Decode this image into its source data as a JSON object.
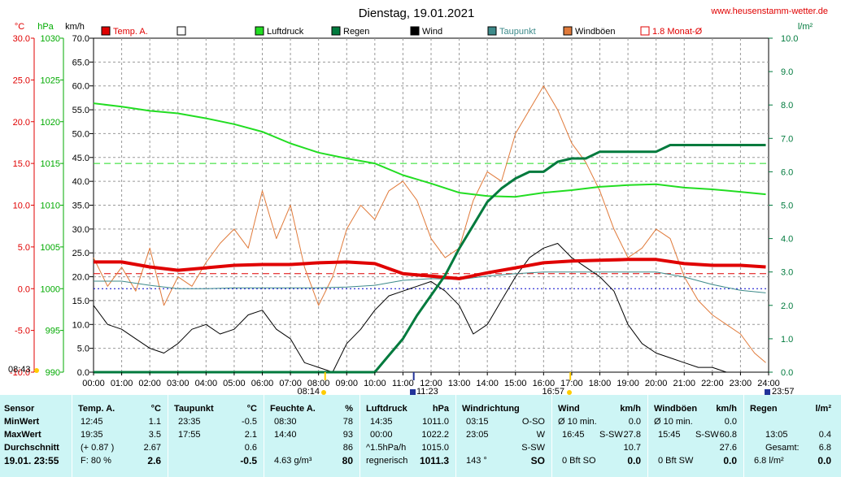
{
  "header": {
    "title": "Dienstag, 19.01.2021",
    "website": "www.heusenstamm-wetter.de"
  },
  "axes": {
    "temp_unit": "°C",
    "pressure_unit": "hPa",
    "wind_unit": "km/h",
    "rain_unit": "l/m²",
    "temp_ticks": [
      "30.0",
      "25.0",
      "20.0",
      "15.0",
      "10.0",
      "5.0",
      "0.0",
      "-5.0",
      "-10.0"
    ],
    "pressure_ticks": [
      "1030",
      "1025",
      "1020",
      "1015",
      "1010",
      "1005",
      "1000",
      "995",
      "990"
    ],
    "wind_ticks": [
      "70.0",
      "65.0",
      "60.0",
      "55.0",
      "50.0",
      "45.0",
      "40.0",
      "35.0",
      "30.0",
      "25.0",
      "20.0",
      "15.0",
      "10.0",
      "5.0",
      "0.0"
    ],
    "rain_ticks": [
      "10.0",
      "9.0",
      "8.0",
      "7.0",
      "6.0",
      "5.0",
      "4.0",
      "3.0",
      "2.0",
      "1.0",
      "0.0"
    ],
    "time_ticks": [
      "00:00",
      "01:00",
      "02:00",
      "03:00",
      "04:00",
      "05:00",
      "06:00",
      "07:00",
      "08:00",
      "09:00",
      "10:00",
      "11:00",
      "12:00",
      "13:00",
      "14:00",
      "15:00",
      "16:00",
      "17:00",
      "18:00",
      "19:00",
      "20:00",
      "21:00",
      "22:00",
      "23:00",
      "24:00"
    ]
  },
  "legend": [
    {
      "label": "Temp. A.",
      "color": "#e00000"
    },
    {
      "label": "",
      "color": "#000000"
    },
    {
      "label": "Luftdruck",
      "color": "#22dd22"
    },
    {
      "label": "Regen",
      "color": "#007a3d"
    },
    {
      "label": "Wind",
      "color": "#000000"
    },
    {
      "label": "Taupunkt",
      "color": "#3d8a8a"
    },
    {
      "label": "Windböen",
      "color": "#e07a3a"
    },
    {
      "label": "1.8 Monat-Ø",
      "color": "#e00000"
    }
  ],
  "time_markers": {
    "sunrise": "08:14",
    "sunset": "16:57",
    "moonrise": "11:23",
    "moonset": "23:57",
    "start": "08:43"
  },
  "chart_data": {
    "type": "line",
    "x_unit": "hours",
    "xlim": [
      0,
      24
    ],
    "title": "Dienstag, 19.01.2021",
    "series": [
      {
        "name": "Temp. A.",
        "axis": "temp",
        "ylim": [
          -10,
          30
        ],
        "x": [
          0,
          1,
          2,
          3,
          4,
          5,
          6,
          7,
          8,
          9,
          10,
          11,
          12,
          13,
          14,
          15,
          16,
          17,
          18,
          19,
          20,
          21,
          22,
          23,
          23.9
        ],
        "values": [
          3.2,
          3.2,
          2.6,
          2.2,
          2.5,
          2.8,
          2.9,
          2.9,
          3.1,
          3.2,
          3.0,
          1.8,
          1.5,
          1.2,
          1.9,
          2.5,
          3.1,
          3.3,
          3.4,
          3.5,
          3.5,
          3.0,
          2.8,
          2.8,
          2.6
        ]
      },
      {
        "name": "Taupunkt",
        "axis": "temp",
        "ylim": [
          -10,
          30
        ],
        "x": [
          0,
          1,
          2,
          3,
          4,
          5,
          6,
          7,
          8,
          9,
          10,
          11,
          12,
          13,
          14,
          15,
          16,
          17,
          18,
          19,
          20,
          21,
          22,
          23,
          23.9
        ],
        "values": [
          0.9,
          0.9,
          0.4,
          0.0,
          0.0,
          0.1,
          0.1,
          0.1,
          0.1,
          0.2,
          0.4,
          1.0,
          1.2,
          1.1,
          1.5,
          1.8,
          2.0,
          2.0,
          2.0,
          2.0,
          2.0,
          1.4,
          0.5,
          -0.2,
          -0.5
        ]
      },
      {
        "name": "Luftdruck",
        "axis": "pressure",
        "ylim": [
          990,
          1030
        ],
        "x": [
          0,
          1,
          2,
          3,
          4,
          5,
          6,
          7,
          8,
          9,
          10,
          11,
          12,
          13,
          14,
          15,
          16,
          17,
          18,
          19,
          20,
          21,
          22,
          23,
          23.9
        ],
        "values": [
          1022.2,
          1021.8,
          1021.3,
          1021.0,
          1020.4,
          1019.7,
          1018.8,
          1017.4,
          1016.3,
          1015.6,
          1015.0,
          1013.6,
          1012.6,
          1011.5,
          1011.1,
          1011.0,
          1011.5,
          1011.8,
          1012.2,
          1012.4,
          1012.5,
          1012.1,
          1011.9,
          1011.6,
          1011.3
        ]
      },
      {
        "name": "Wind",
        "axis": "wind",
        "ylim": [
          0,
          70
        ],
        "x": [
          0,
          0.5,
          1,
          1.5,
          2,
          2.5,
          3,
          3.5,
          4,
          4.5,
          5,
          5.5,
          6,
          6.5,
          7,
          7.5,
          8,
          8.5,
          9,
          9.5,
          10,
          10.5,
          11,
          11.5,
          12,
          12.5,
          13,
          13.5,
          14,
          14.5,
          15,
          15.5,
          16,
          16.5,
          17,
          17.5,
          18,
          18.5,
          19,
          19.5,
          20,
          20.5,
          21,
          21.5,
          22,
          22.5,
          23,
          23.5,
          23.9
        ],
        "values": [
          14,
          10,
          9,
          7,
          5,
          4,
          6,
          9,
          10,
          8,
          9,
          12,
          13,
          9,
          7,
          2,
          1,
          0,
          6,
          9,
          13,
          16,
          17,
          18,
          19,
          17,
          14,
          8,
          10,
          15,
          20,
          24,
          26,
          27,
          24,
          22,
          20,
          17,
          10,
          6,
          4,
          3,
          2,
          1,
          1,
          0,
          0,
          0,
          0
        ]
      },
      {
        "name": "Windböen",
        "axis": "wind",
        "ylim": [
          0,
          70
        ],
        "x": [
          0,
          0.5,
          1,
          1.5,
          2,
          2.5,
          3,
          3.5,
          4,
          4.5,
          5,
          5.5,
          6,
          6.5,
          7,
          7.5,
          8,
          8.5,
          9,
          9.5,
          10,
          10.5,
          11,
          11.5,
          12,
          12.5,
          13,
          13.5,
          14,
          14.5,
          15,
          15.5,
          16,
          16.5,
          17,
          17.5,
          18,
          18.5,
          19,
          19.5,
          20,
          20.5,
          21,
          21.5,
          22,
          22.5,
          23,
          23.5,
          23.9
        ],
        "values": [
          24,
          18,
          22,
          17,
          26,
          14,
          20,
          18,
          23,
          27,
          30,
          26,
          38,
          28,
          35,
          22,
          14,
          20,
          30,
          35,
          32,
          38,
          40,
          36,
          28,
          24,
          26,
          36,
          42,
          40,
          50,
          55,
          60,
          55,
          48,
          44,
          38,
          30,
          24,
          26,
          30,
          28,
          20,
          15,
          12,
          10,
          8,
          4,
          2
        ]
      },
      {
        "name": "Regen",
        "axis": "rain",
        "ylim": [
          0,
          10
        ],
        "x": [
          0,
          10.0,
          10.5,
          11.0,
          11.5,
          12.0,
          12.5,
          13.0,
          13.5,
          14.0,
          14.5,
          15.0,
          15.5,
          16.0,
          16.5,
          17.0,
          17.5,
          18.0,
          18.5,
          19.0,
          19.5,
          20.0,
          20.5,
          21.0,
          22.0,
          23.0,
          23.9
        ],
        "values": [
          0,
          0,
          0.5,
          1.0,
          1.7,
          2.3,
          2.9,
          3.7,
          4.4,
          5.1,
          5.5,
          5.8,
          6.0,
          6.0,
          6.3,
          6.4,
          6.4,
          6.6,
          6.6,
          6.6,
          6.6,
          6.6,
          6.8,
          6.8,
          6.8,
          6.8,
          6.8
        ]
      }
    ],
    "reference_lines": [
      {
        "name": "1.8 Monat-Ø",
        "axis": "temp",
        "value": 1.8,
        "color": "#e00000"
      },
      {
        "axis": "pressure",
        "value": 1015.0,
        "color": "#22dd22"
      },
      {
        "axis": "temp",
        "value": 0.0,
        "color": "#0000cc"
      }
    ]
  },
  "table": {
    "sensor": {
      "header": "Sensor",
      "min": "MinWert",
      "max": "MaxWert",
      "avg": "Durchschnitt",
      "current": "19.01. 23:55"
    },
    "temp": {
      "header": "Temp. A.",
      "unit": "°C",
      "min_time": "12:45",
      "min_val": "1.1",
      "max_time": "19:35",
      "max_val": "3.5",
      "avg_label": "(+ 0.87 )",
      "avg_val": "2.67",
      "cur_label": "F: 80 %",
      "cur_val": "2.6"
    },
    "dew": {
      "header": "Taupunkt",
      "unit": "°C",
      "min_time": "23:35",
      "min_val": "-0.5",
      "max_time": "17:55",
      "max_val": "2.1",
      "avg_val": "0.6",
      "cur_val": "-0.5"
    },
    "hum": {
      "header": "Feuchte A.",
      "unit": "%",
      "min_time": "08:30",
      "min_val": "78",
      "max_time": "14:40",
      "max_val": "93",
      "avg_val": "86",
      "cur_label": "4.63 g/m³",
      "cur_val": "80"
    },
    "press": {
      "header": "Luftdruck",
      "unit": "hPa",
      "min_time": "14:35",
      "min_val": "1011.0",
      "max_time": "00:00",
      "max_val": "1022.2",
      "avg_label": "^1.5hPa/h",
      "avg_val": "1015.0",
      "cur_label": "regnerisch",
      "cur_val": "1011.3"
    },
    "dir": {
      "header": "Windrichtung",
      "min_time": "03:15",
      "min_val": "O-SO",
      "max_time": "23:05",
      "max_val": "W",
      "avg_val": "S-SW",
      "cur_label": "143 °",
      "cur_val": "SO"
    },
    "wind": {
      "header": "Wind",
      "unit": "km/h",
      "min_label": "Ø 10 min.",
      "min_val": "0.0",
      "max_time": "16:45",
      "max_dir": "S-SW",
      "max_val": "27.8",
      "avg_val": "10.7",
      "cur_label": "0 Bft SO",
      "cur_val": "0.0"
    },
    "gust": {
      "header": "Windböen",
      "unit": "km/h",
      "min_label": "Ø 10 min.",
      "min_val": "0.0",
      "max_time": "15:45",
      "max_dir": "S-SW",
      "max_val": "60.8",
      "avg_val": "27.6",
      "cur_label": "0 Bft SW",
      "cur_val": "0.0"
    },
    "rain": {
      "header": "Regen",
      "unit": "l/m²",
      "min_time": "13:05",
      "min_val": "0.4",
      "total_label": "Gesamt:",
      "total_val": "6.8",
      "cur_label": "6.8 l/m²",
      "cur_val": "0.0"
    }
  }
}
